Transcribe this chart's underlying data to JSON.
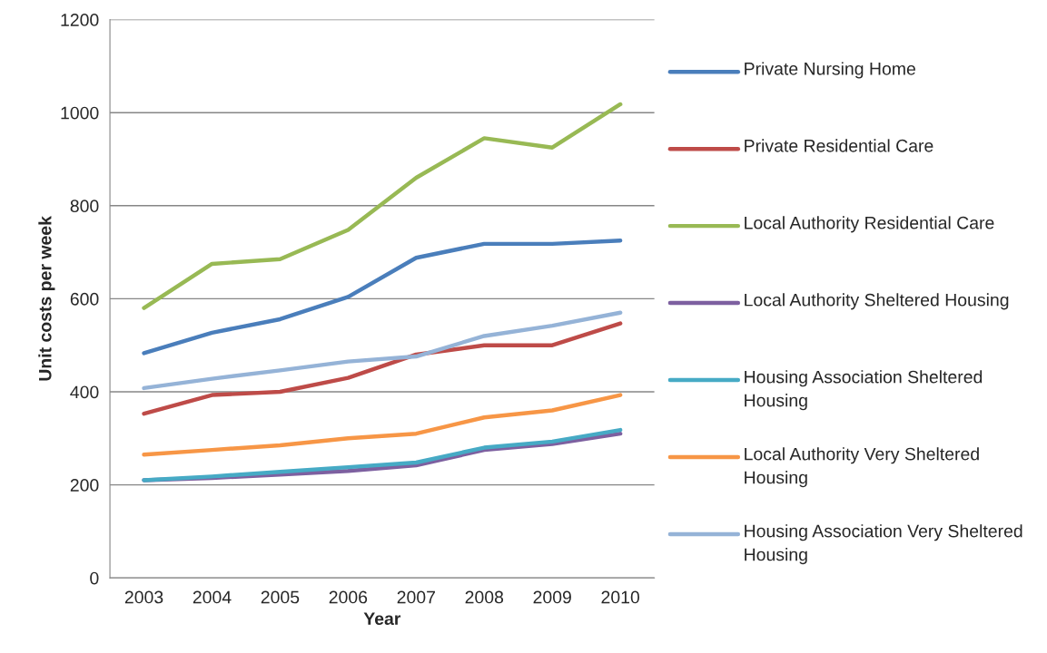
{
  "chart_data": {
    "type": "line",
    "xlabel": "Year",
    "ylabel": "Unit costs per week",
    "categories": [
      "2003",
      "2004",
      "2005",
      "2006",
      "2007",
      "2008",
      "2009",
      "2010"
    ],
    "series": [
      {
        "name": "Private Nursing Home",
        "color": "#4a7ebb",
        "values": [
          483,
          527,
          556,
          604,
          688,
          718,
          718,
          725
        ]
      },
      {
        "name": "Private Residential Care",
        "color": "#be4b48",
        "values": [
          353,
          393,
          400,
          430,
          480,
          500,
          500,
          547
        ]
      },
      {
        "name": "Local Authority Residential Care",
        "color": "#98b954",
        "values": [
          580,
          675,
          685,
          748,
          860,
          945,
          925,
          1018
        ]
      },
      {
        "name": "Local Authority Sheltered Housing",
        "color": "#7d60a0",
        "values": [
          210,
          215,
          222,
          230,
          242,
          275,
          288,
          310
        ]
      },
      {
        "name": "Housing Association Sheltered Housing",
        "color": "#46aac5",
        "values": [
          210,
          218,
          228,
          238,
          248,
          280,
          293,
          318
        ]
      },
      {
        "name": "Local Authority Very Sheltered Housing",
        "color": "#f79646",
        "values": [
          265,
          275,
          285,
          300,
          310,
          345,
          360,
          393
        ]
      },
      {
        "name": "Housing Association Very Sheltered Housing",
        "color": "#95b3d7",
        "values": [
          408,
          428,
          446,
          465,
          476,
          520,
          542,
          570
        ]
      }
    ],
    "ylim": [
      0,
      1200
    ],
    "yticks": [
      0,
      200,
      400,
      600,
      800,
      1000,
      1200
    ],
    "grid": "y",
    "legend": "right",
    "marker": "none",
    "line_style": "solid"
  }
}
